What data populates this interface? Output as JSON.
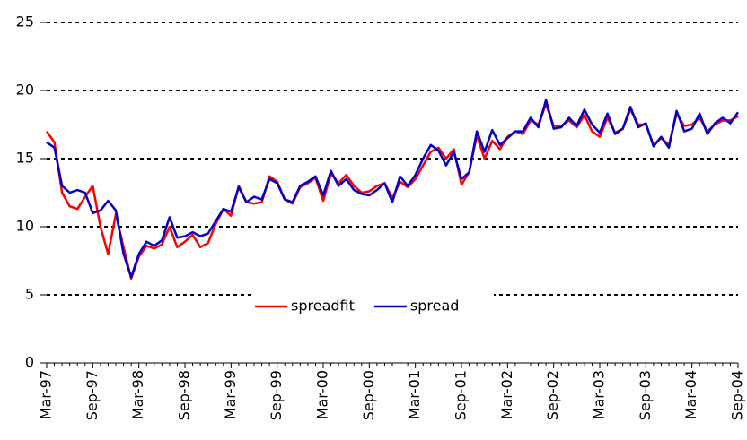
{
  "chart_data": {
    "type": "line",
    "categories": [
      "Mar-97",
      null,
      null,
      null,
      null,
      null,
      "Sep-97",
      null,
      null,
      null,
      null,
      null,
      "Mar-98",
      null,
      null,
      null,
      null,
      null,
      "Sep-98",
      null,
      null,
      null,
      null,
      null,
      "Mar-99",
      null,
      null,
      null,
      null,
      null,
      "Sep-99",
      null,
      null,
      null,
      null,
      null,
      "Mar-00",
      null,
      null,
      null,
      null,
      null,
      "Sep-00",
      null,
      null,
      null,
      null,
      null,
      "Mar-01",
      null,
      null,
      null,
      null,
      null,
      "Sep-01",
      null,
      null,
      null,
      null,
      null,
      "Mar-02",
      null,
      null,
      null,
      null,
      null,
      "Sep-02",
      null,
      null,
      null,
      null,
      null,
      "Mar-03",
      null,
      null,
      null,
      null,
      null,
      "Sep-03",
      null,
      null,
      null,
      null,
      null,
      "Mar-04",
      null,
      null,
      null,
      null,
      null,
      "Sep-04"
    ],
    "series": [
      {
        "name": "spreadfit",
        "color": "#ff0000",
        "values": [
          17.0,
          16.2,
          12.5,
          11.5,
          11.3,
          12.2,
          13.0,
          10.0,
          8.0,
          10.9,
          8.5,
          6.2,
          7.8,
          8.6,
          8.4,
          8.7,
          10.0,
          8.5,
          8.9,
          9.4,
          8.5,
          8.8,
          10.2,
          11.3,
          10.8,
          13.0,
          11.8,
          11.7,
          11.8,
          13.7,
          13.3,
          12.0,
          11.7,
          12.9,
          13.2,
          13.6,
          11.9,
          13.9,
          13.2,
          13.8,
          13.0,
          12.5,
          12.6,
          13.0,
          13.2,
          12.1,
          13.3,
          12.9,
          13.5,
          14.5,
          15.5,
          15.8,
          15.0,
          15.7,
          13.1,
          14.0,
          16.7,
          15.0,
          16.3,
          15.7,
          16.6,
          17.0,
          16.8,
          17.8,
          17.5,
          19.0,
          17.4,
          17.4,
          17.8,
          17.3,
          18.2,
          17.0,
          16.6,
          18.0,
          16.9,
          17.2,
          18.6,
          17.5,
          17.5,
          16.0,
          16.5,
          16.0,
          18.3,
          17.4,
          17.5,
          18.0,
          17.0,
          17.5,
          17.8,
          17.8,
          18.1
        ]
      },
      {
        "name": "spread",
        "color": "#0000cc",
        "values": [
          16.2,
          15.8,
          13.0,
          12.5,
          12.7,
          12.5,
          11.0,
          11.2,
          11.9,
          11.2,
          8.0,
          6.3,
          8.0,
          8.9,
          8.6,
          9.0,
          10.7,
          9.2,
          9.3,
          9.6,
          9.3,
          9.5,
          10.4,
          11.3,
          11.1,
          12.9,
          11.8,
          12.2,
          12.0,
          13.5,
          13.2,
          12.0,
          11.8,
          13.0,
          13.3,
          13.7,
          12.3,
          14.1,
          13.0,
          13.5,
          12.7,
          12.4,
          12.3,
          12.7,
          13.2,
          11.8,
          13.7,
          13.0,
          13.8,
          15.0,
          16.0,
          15.6,
          14.5,
          15.5,
          13.5,
          14.0,
          17.0,
          15.5,
          17.1,
          16.0,
          16.5,
          17.0,
          17.0,
          18.0,
          17.3,
          19.3,
          17.2,
          17.3,
          18.0,
          17.4,
          18.6,
          17.5,
          16.9,
          18.3,
          16.8,
          17.2,
          18.8,
          17.3,
          17.6,
          15.9,
          16.6,
          15.8,
          18.5,
          17.0,
          17.2,
          18.3,
          16.8,
          17.6,
          18.0,
          17.6,
          18.4
        ]
      }
    ],
    "ylim": [
      0,
      25
    ],
    "yticks": [
      0,
      5,
      10,
      15,
      20,
      25
    ],
    "grid": true,
    "legend": "center"
  }
}
